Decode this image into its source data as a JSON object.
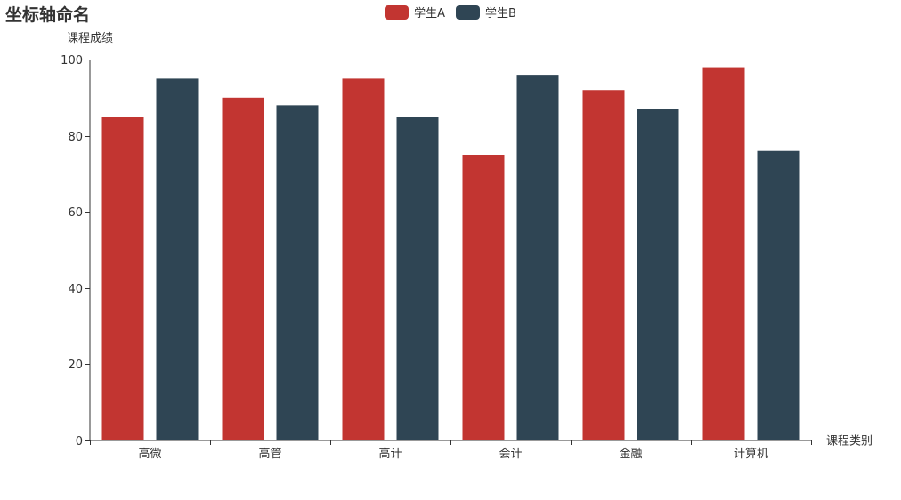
{
  "chart_data": {
    "type": "bar",
    "title": "坐标轴命名",
    "xlabel": "课程类别",
    "ylabel": "课程成绩",
    "categories": [
      "高微",
      "高管",
      "高计",
      "会计",
      "金融",
      "计算机"
    ],
    "series": [
      {
        "name": "学生A",
        "color": "#c23531",
        "values": [
          85,
          90,
          95,
          75,
          92,
          98
        ]
      },
      {
        "name": "学生B",
        "color": "#2f4554",
        "values": [
          95,
          88,
          85,
          96,
          87,
          76
        ]
      }
    ],
    "ylim": [
      0,
      100
    ],
    "yticks": [
      0,
      20,
      40,
      60,
      80,
      100
    ],
    "grid": false,
    "legend_position": "top-center"
  }
}
